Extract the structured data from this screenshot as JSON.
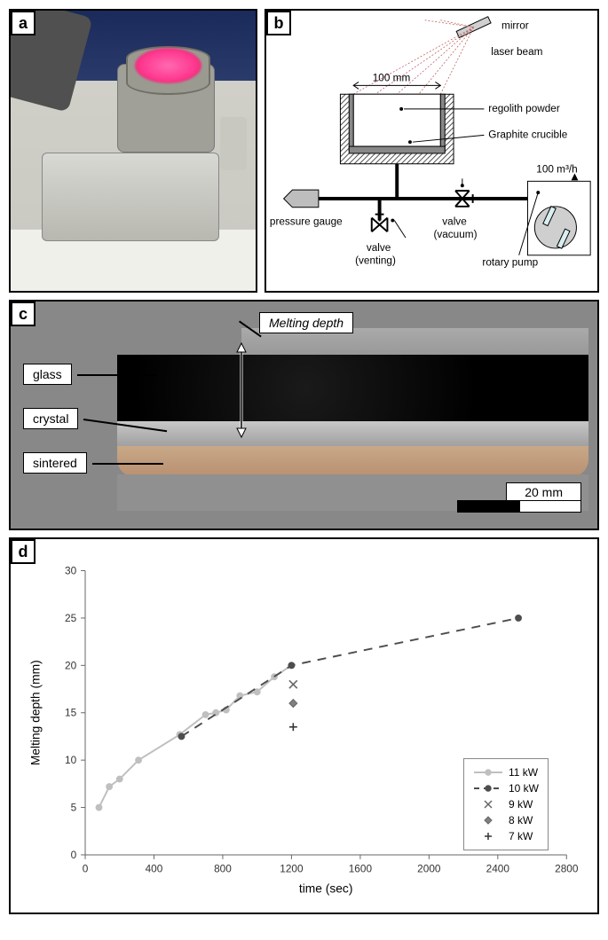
{
  "panels": {
    "a": {
      "label": "a"
    },
    "b": {
      "label": "b",
      "annotations": {
        "mirror": "mirror",
        "laser": "laser beam",
        "width": "100 mm",
        "regolith": "regolith powder",
        "crucible": "Graphite crucible",
        "gauge": "pressure gauge",
        "valve_vent": "valve\n(venting)",
        "valve_vac": "valve\n(vacuum)",
        "pump": "rotary pump",
        "flow": "100 m³/h"
      }
    },
    "c": {
      "label": "c",
      "melting_depth": "Melting depth",
      "layers": {
        "glass": "glass",
        "crystal": "crystal",
        "sintered": "sintered"
      },
      "scalebar": "20 mm"
    },
    "d": {
      "label": "d",
      "chart": {
        "type": "scatter-line",
        "xlabel": "time (sec)",
        "ylabel": "Melting depth (mm)",
        "xlim": [
          0,
          2800
        ],
        "ylim": [
          0,
          30
        ],
        "xtick_step": 400,
        "ytick_step": 5,
        "label_fontsize": 14,
        "tick_fontsize": 12,
        "background_color": "#ffffff",
        "axis_color": "#666666",
        "series": [
          {
            "name": "11 kW",
            "marker": "circle",
            "line": "solid",
            "color": "#bfbfbf",
            "marker_fill": "#bfbfbf",
            "x": [
              80,
              140,
              200,
              310,
              550,
              700,
              760,
              820,
              900,
              1000,
              1100,
              1200
            ],
            "y": [
              5.0,
              7.2,
              8.0,
              10.0,
              12.7,
              14.8,
              15.0,
              15.3,
              16.8,
              17.2,
              18.8,
              20.0
            ]
          },
          {
            "name": "10 kW",
            "marker": "circle",
            "line": "dash",
            "color": "#4d4d4d",
            "marker_fill": "#4d4d4d",
            "x": [
              560,
              1200,
              2520
            ],
            "y": [
              12.5,
              20.0,
              25.0
            ]
          },
          {
            "name": "9 kW",
            "marker": "x",
            "line": "none",
            "color": "#666666",
            "x": [
              1210
            ],
            "y": [
              18.0
            ]
          },
          {
            "name": "8 kW",
            "marker": "diamond",
            "line": "none",
            "color": "#666666",
            "marker_fill": "#808080",
            "x": [
              1210
            ],
            "y": [
              16.0
            ]
          },
          {
            "name": "7 kW",
            "marker": "plus",
            "line": "none",
            "color": "#333333",
            "x": [
              1210
            ],
            "y": [
              13.5
            ]
          }
        ]
      }
    }
  }
}
